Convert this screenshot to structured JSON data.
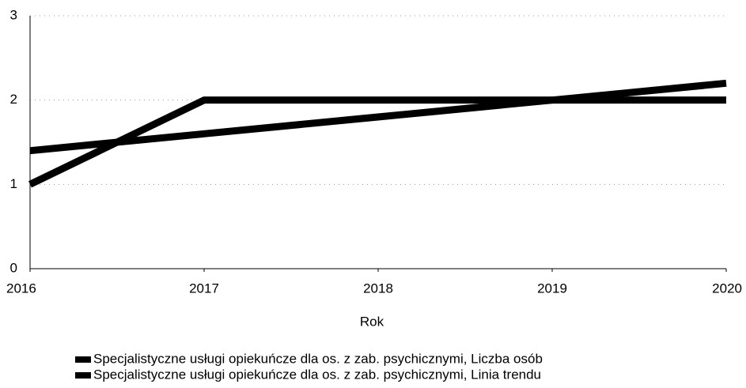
{
  "chart_data": {
    "type": "line",
    "x": [
      2016,
      2017,
      2018,
      2019,
      2020
    ],
    "xlim": [
      2016,
      2020
    ],
    "xticks": [
      2016,
      2017,
      2018,
      2019,
      2020
    ],
    "ylim": [
      0,
      3
    ],
    "yticks": [
      0,
      1,
      2,
      3
    ],
    "xlabel": "Rok",
    "grid": true,
    "series": [
      {
        "name": "Specjalistyczne usługi opiekuńcze dla os. z zab. psychicznymi, Liczba osób",
        "color": "#000000",
        "values": [
          1,
          2,
          2,
          2,
          2
        ]
      },
      {
        "name": "Specjalistyczne usługi opiekuńcze dla os. z zab. psychicznymi, Linia trendu",
        "color": "#000000",
        "values": [
          1.4,
          1.6,
          1.8,
          2.0,
          2.2
        ]
      }
    ]
  }
}
